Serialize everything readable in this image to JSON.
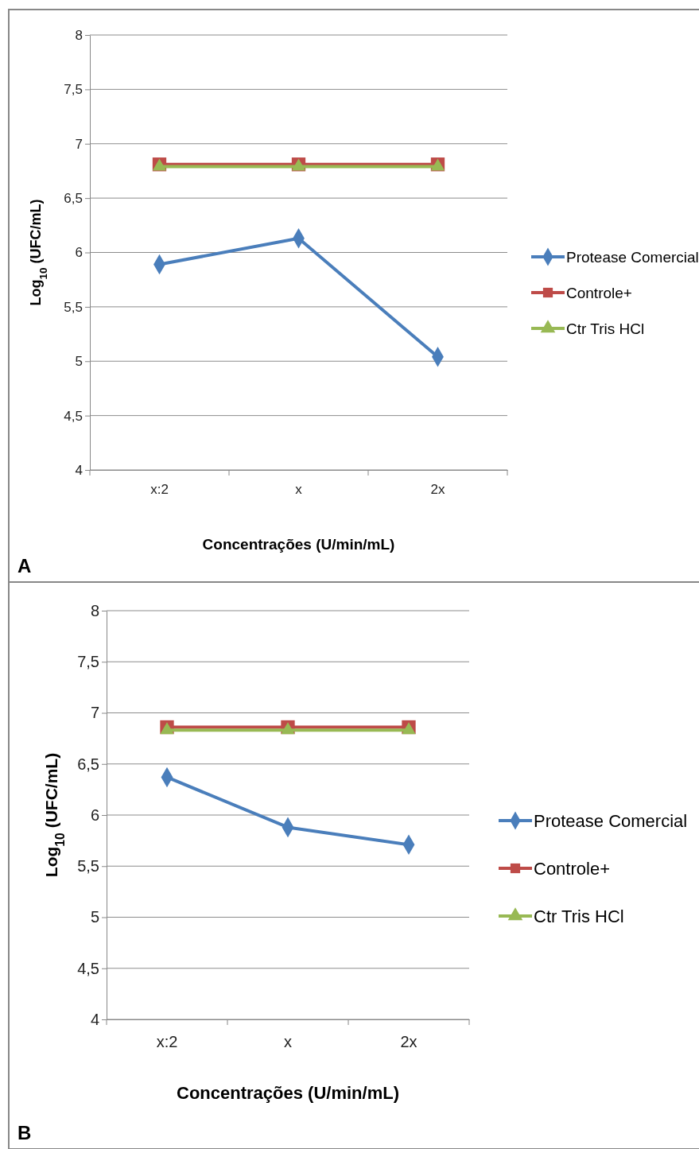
{
  "chart_data": [
    {
      "type": "line",
      "categories": [
        "x:2",
        "x",
        "2x"
      ],
      "xlabel": "Concentrações (U/min/mL)",
      "ylabel": "Log$_{10}$ (UFC/mL)",
      "ylim": [
        4,
        8
      ],
      "yticks": [
        {
          "value": 4,
          "label": "4"
        },
        {
          "value": 4.5,
          "label": "4,5"
        },
        {
          "value": 5,
          "label": "5"
        },
        {
          "value": 5.5,
          "label": "5,5"
        },
        {
          "value": 6,
          "label": "6"
        },
        {
          "value": 6.5,
          "label": "6,5"
        },
        {
          "value": 7,
          "label": "7"
        },
        {
          "value": 7.5,
          "label": "7,5"
        },
        {
          "value": 8,
          "label": "8"
        }
      ],
      "grid": "y",
      "legend": "right",
      "annotations": [
        "A"
      ],
      "series": [
        {
          "name": "Protease Comercial",
          "color": "#4a7ebb",
          "marker": "diamond",
          "values": [
            5.89,
            6.13,
            5.04
          ]
        },
        {
          "name": "Controle+",
          "color": "#be4b48",
          "marker": "square",
          "values": [
            6.81,
            6.81,
            6.81
          ]
        },
        {
          "name": "Ctr Tris HCl",
          "color": "#98b954",
          "marker": "triangle",
          "values": [
            6.79,
            6.79,
            6.79
          ]
        }
      ]
    },
    {
      "type": "line",
      "categories": [
        "x:2",
        "x",
        "2x"
      ],
      "xlabel": "Concentrações (U/min/mL)",
      "ylabel": "Log$_{10}$ (UFC/mL)",
      "ylim": [
        4,
        8
      ],
      "yticks": [
        {
          "value": 4,
          "label": "4"
        },
        {
          "value": 4.5,
          "label": "4,5"
        },
        {
          "value": 5,
          "label": "5"
        },
        {
          "value": 5.5,
          "label": "5,5"
        },
        {
          "value": 6,
          "label": "6"
        },
        {
          "value": 6.5,
          "label": "6,5"
        },
        {
          "value": 7,
          "label": "7"
        },
        {
          "value": 7.5,
          "label": "7,5"
        },
        {
          "value": 8,
          "label": "8"
        }
      ],
      "grid": "y",
      "legend": "right",
      "annotations": [
        "B"
      ],
      "series": [
        {
          "name": "Protease Comercial",
          "color": "#4a7ebb",
          "marker": "diamond",
          "values": [
            6.37,
            5.88,
            5.71
          ]
        },
        {
          "name": "Controle+",
          "color": "#be4b48",
          "marker": "square",
          "values": [
            6.86,
            6.86,
            6.86
          ]
        },
        {
          "name": "Ctr Tris HCl",
          "color": "#98b954",
          "marker": "triangle",
          "values": [
            6.83,
            6.83,
            6.83
          ]
        }
      ]
    }
  ]
}
